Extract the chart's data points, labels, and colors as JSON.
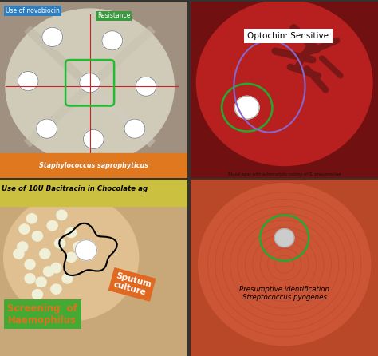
{
  "figsize": [
    4.74,
    4.46
  ],
  "dpi": 100,
  "tl_bg": "#a09080",
  "tl_plate": "#d0cbb8",
  "tl_novobiocin_bg": "#2e7ec0",
  "tl_resistance_bg": "#3a9a40",
  "tl_bottom_bg": "#e07820",
  "tl_bottom_text": "Staphylococcus saprophyticus",
  "tl_label1": "Use of novobiocin",
  "tl_label2": "Resistance",
  "tr_bg": "#701010",
  "tr_plate": "#b82020",
  "tr_optochin": "Optochin: Sensitive",
  "tr_bottom": "Blood agar with α-hemolytic colony of S. pneumoniae",
  "bl_bg": "#c8a878",
  "bl_plate": "#d0aa80",
  "bl_banner_bg": "#ccc040",
  "bl_banner_text": "Use of 10U Bacitracin in Chocolate ag",
  "bl_screen_bg": "#44aa33",
  "bl_screen_text": "Screening  of\nHaemophilus",
  "bl_screen_color": "#e07020",
  "bl_sputum_bg": "#e06820",
  "bl_sputum_text": "Sputum\nculture",
  "br_bg": "#b84828",
  "br_plate": "#cc5535",
  "br_text": "Presumptive identification\nStreptococcus pyogenes"
}
